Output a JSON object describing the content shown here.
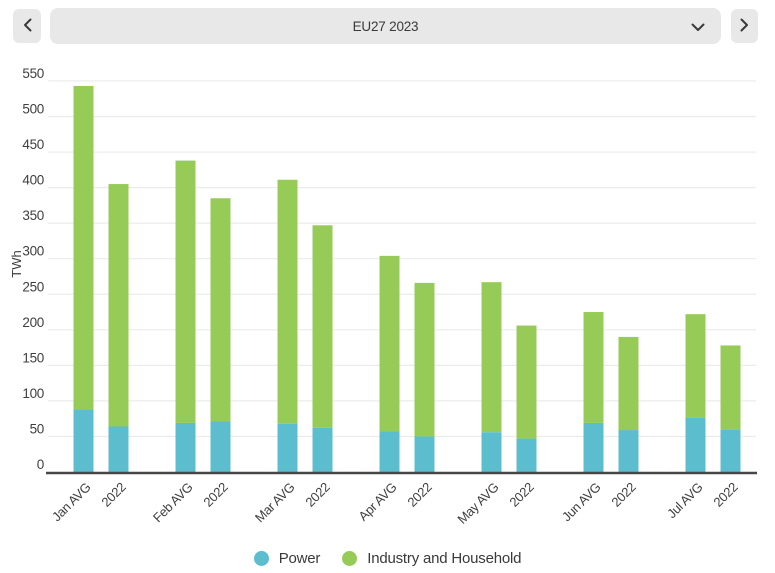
{
  "header": {
    "selector_value": "EU27 2023"
  },
  "chart_data": {
    "type": "bar",
    "stacked": true,
    "title": "",
    "ylabel": "TWh",
    "xlabel": "",
    "ylim": [
      0,
      550
    ],
    "yticks": [
      0,
      50,
      100,
      150,
      200,
      250,
      300,
      350,
      400,
      450,
      500,
      550
    ],
    "grid": true,
    "legend_position": "bottom",
    "categories": [
      "Jan AVG",
      "2022",
      "Feb AVG",
      "2022",
      "Mar AVG",
      "2022",
      "Apr AVG",
      "2022",
      "May AVG",
      "2022",
      "Jun AVG",
      "2022",
      "Jul AVG",
      "2022"
    ],
    "series": [
      {
        "name": "Power",
        "color": "#5cbdce",
        "values": [
          88,
          64,
          69,
          71,
          68,
          62,
          57,
          50,
          56,
          47,
          69,
          59,
          76,
          60
        ]
      },
      {
        "name": "Industry and Household",
        "color": "#97cb58",
        "values": [
          455,
          341,
          369,
          314,
          343,
          285,
          247,
          216,
          211,
          159,
          156,
          131,
          146,
          118
        ]
      }
    ],
    "totals": [
      543,
      405,
      438,
      385,
      411,
      347,
      304,
      266,
      267,
      206,
      225,
      190,
      222,
      178
    ]
  },
  "colors": {
    "power": "#5cbdce",
    "industry": "#97cb58",
    "gridline": "#ebebeb",
    "axis": "#474747",
    "text": "#3f3f3f",
    "control_bg": "#e8e8e8"
  }
}
